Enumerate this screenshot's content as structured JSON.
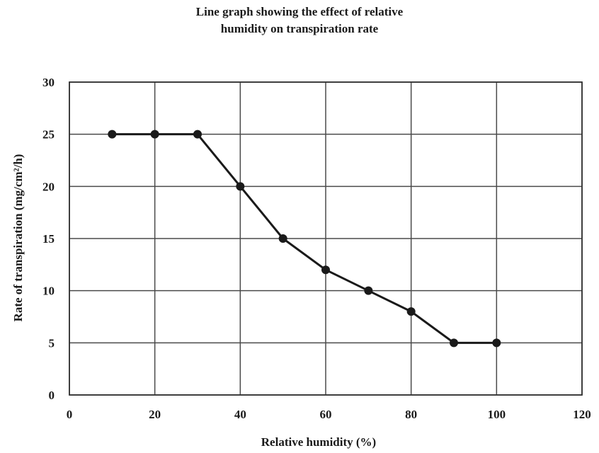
{
  "chart_data": {
    "type": "line",
    "title_lines": [
      "Line graph showing the effect of relative",
      "humidity on transpiration rate"
    ],
    "xlabel": "Relative humidity (%)",
    "ylabel": "Rate of transpiration (mg/cm²/h)",
    "xlim": [
      0,
      120
    ],
    "ylim": [
      0,
      30
    ],
    "xticks": [
      0,
      20,
      40,
      60,
      80,
      100,
      120
    ],
    "yticks": [
      0,
      5,
      10,
      15,
      20,
      25,
      30
    ],
    "x_gridlines": [
      0,
      20,
      40,
      60,
      80,
      100,
      120
    ],
    "y_gridlines": [
      0,
      5,
      10,
      15,
      20,
      25,
      30
    ],
    "grid": true,
    "series": [
      {
        "x": [
          10,
          20,
          30,
          40,
          50,
          60,
          70,
          80,
          90,
          100
        ],
        "y": [
          25,
          25,
          25,
          20,
          15,
          12,
          10,
          8,
          5,
          5
        ],
        "color": "#1a1a1a",
        "marker": "circle"
      }
    ]
  }
}
